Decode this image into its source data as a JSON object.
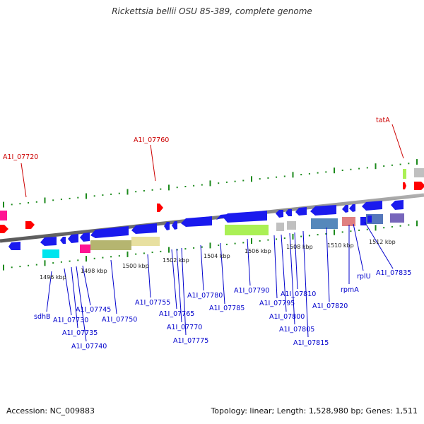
{
  "title": "Rickettsia bellii OSU 85-389, complete genome",
  "footer": {
    "accession": "Accession: NC_009883",
    "stats": "Topology: linear; Length: 1,528,980 bp; Genes: 1,511"
  },
  "colors": {
    "forward_label": "#cc0000",
    "reverse_label": "#0000cc",
    "forward_gene": "#ff0000",
    "reverse_gene": "#1a1aee",
    "backbone": "#888888",
    "tick": "#1c8a1c"
  },
  "scale_labels": [
    "1496 kbp",
    "1498 kbp",
    "1500 kbp",
    "1502 kbp",
    "1504 kbp",
    "1506 kbp",
    "1508 kbp",
    "1510 kbp",
    "1512 kbp"
  ],
  "forward_labels": [
    "A1I_07720",
    "A1I_07760",
    "tatA"
  ],
  "reverse_labels": [
    "sdhB",
    "A1I_07730",
    "A1I_07735",
    "A1I_07740",
    "A1I_07745",
    "A1I_07750",
    "A1I_07755",
    "A1I_07765",
    "A1I_07770",
    "A1I_07775",
    "A1I_07780",
    "A1I_07785",
    "A1I_07790",
    "A1I_07795",
    "A1I_07800",
    "A1I_07805",
    "A1I_07810",
    "A1I_07815",
    "A1I_07820",
    "rpmA",
    "rplU",
    "A1I_07835"
  ]
}
